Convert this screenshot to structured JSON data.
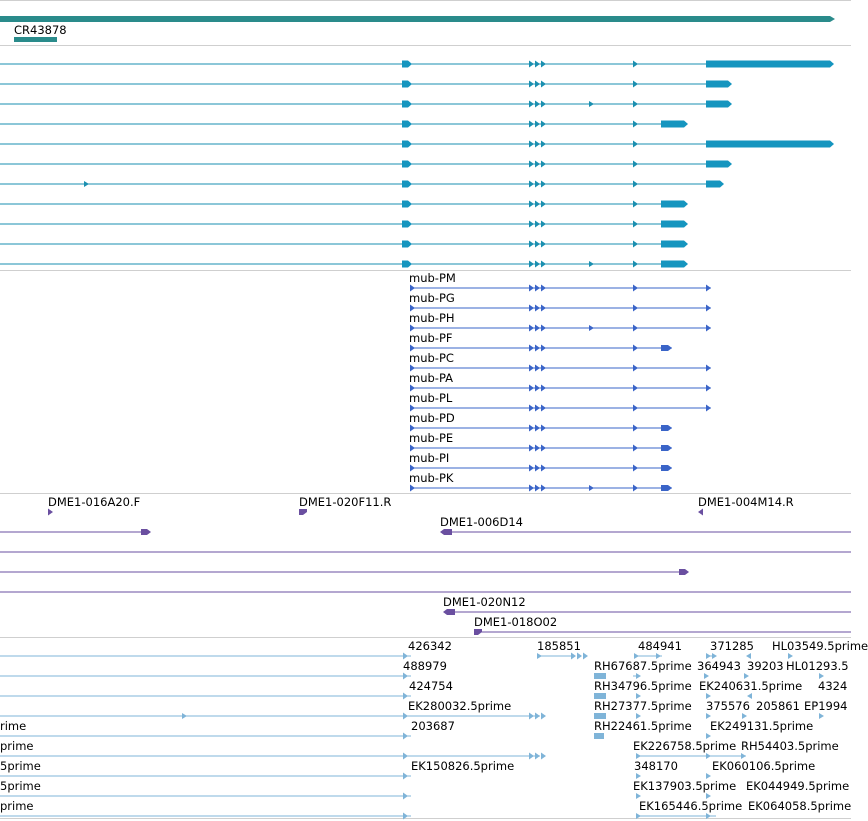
{
  "colors": {
    "gene_track": "#2a8b8b",
    "transcript": "#1a8fb0",
    "transcript_thick": "#1595bf",
    "protein": "#3a64c8",
    "clone": "#6a4fa0",
    "est": "#7fb4d8",
    "divider": "#cfcfcf"
  },
  "gene": {
    "name": "CR43878"
  },
  "proteins": {
    "names": [
      "mub-PM",
      "mub-PG",
      "mub-PH",
      "mub-PF",
      "mub-PC",
      "mub-PA",
      "mub-PL",
      "mub-PD",
      "mub-PE",
      "mub-PI",
      "mub-PK"
    ]
  },
  "clones": {
    "labels": [
      "DME1-016A20.F",
      "DME1-020F11.R",
      "DME1-004M14.R",
      "DME1-006D14",
      "DME1-020N12",
      "DME1-018O02"
    ]
  },
  "ests": {
    "labels": [
      "426342",
      "185851",
      "484941",
      "371285",
      "HL03549.5prime",
      "488979",
      "RH67687.5prime",
      "364943",
      "39203",
      "HL01293.5",
      "424754",
      "RH34796.5prime",
      "EK240631.5prime",
      "4324",
      "EK280032.5prime",
      "RH27377.5prime",
      "375576",
      "205861",
      "EP1994",
      "rime",
      "203687",
      "RH22461.5prime",
      "EK249131.5prime",
      "prime",
      "EK226758.5prime",
      "RH54403.5prime",
      "5prime",
      "EK150826.5prime",
      "348170",
      "EK060106.5prime",
      "5prime",
      "EK137903.5prime",
      "EK044949.5prime",
      "prime",
      "EK165446.5prime",
      "EK064058.5prime"
    ]
  }
}
